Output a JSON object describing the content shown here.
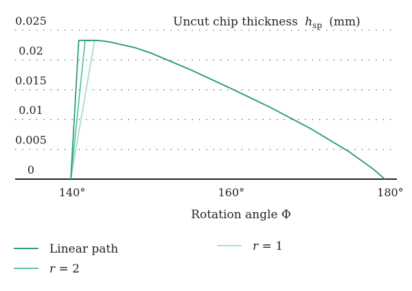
{
  "chart_data": {
    "type": "line",
    "title": "Uncut chip thickness",
    "title_symbol": "h",
    "title_subscript": "sp",
    "title_unit": "(mm)",
    "xlabel": "Rotation angle Φ",
    "xlim": [
      133,
      181
    ],
    "ylim": [
      0,
      0.025
    ],
    "x_ticks": [
      140,
      160,
      180
    ],
    "x_tick_labels": [
      "140°",
      "160°",
      "180°"
    ],
    "y_ticks": [
      0,
      0.005,
      0.01,
      0.015,
      0.02,
      0.025
    ],
    "y_tick_labels": [
      "0",
      "0.005",
      "0.01",
      "0.015",
      "0.02",
      "0.025"
    ],
    "grid": "horizontal dotted",
    "legend_position": "bottom",
    "series": [
      {
        "name": "Linear path",
        "color": "#2e9c80",
        "points": [
          [
            140,
            0
          ],
          [
            141,
            0.0233
          ],
          [
            142,
            0.0233
          ],
          [
            143,
            0.0233
          ],
          [
            144,
            0.0232
          ],
          [
            145,
            0.023
          ],
          [
            146,
            0.0227
          ],
          [
            148,
            0.0221
          ],
          [
            150,
            0.0212
          ],
          [
            155,
            0.0184
          ],
          [
            160,
            0.0153
          ],
          [
            165,
            0.0121
          ],
          [
            170,
            0.0086
          ],
          [
            175,
            0.0046
          ],
          [
            178,
            0.0017
          ],
          [
            179.5,
            0
          ]
        ]
      },
      {
        "name": "r = 2",
        "color": "#5dc49e",
        "points": [
          [
            140,
            0
          ],
          [
            141.8,
            0.0232
          ],
          [
            143,
            0.0233
          ],
          [
            144,
            0.0232
          ],
          [
            145,
            0.023
          ],
          [
            146,
            0.0227
          ],
          [
            148,
            0.0221
          ],
          [
            150,
            0.0212
          ],
          [
            155,
            0.0184
          ],
          [
            160,
            0.0153
          ],
          [
            165,
            0.0121
          ],
          [
            170,
            0.0086
          ],
          [
            175,
            0.0046
          ],
          [
            178,
            0.0017
          ],
          [
            179.5,
            0
          ]
        ]
      },
      {
        "name": "r = 1",
        "color": "#a8ddc6",
        "points": [
          [
            140,
            0
          ],
          [
            143,
            0.0233
          ],
          [
            144,
            0.0232
          ],
          [
            145,
            0.023
          ],
          [
            146,
            0.0227
          ],
          [
            148,
            0.0221
          ],
          [
            150,
            0.0212
          ],
          [
            155,
            0.0184
          ],
          [
            160,
            0.0153
          ],
          [
            165,
            0.0121
          ],
          [
            170,
            0.0086
          ],
          [
            175,
            0.0046
          ],
          [
            178,
            0.0017
          ],
          [
            179.5,
            0
          ]
        ]
      }
    ]
  }
}
